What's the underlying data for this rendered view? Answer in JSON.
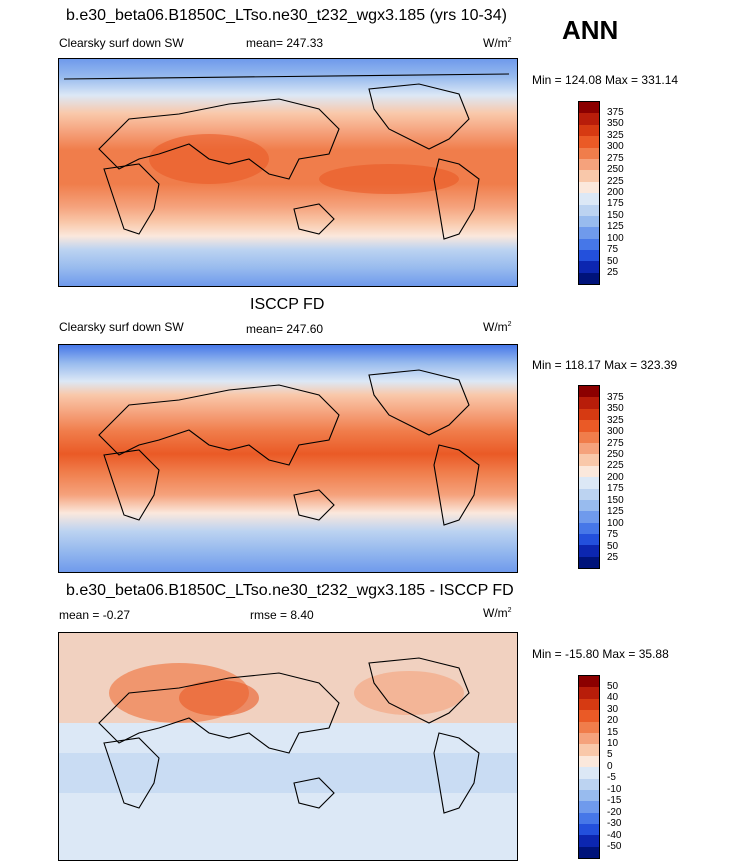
{
  "season": "ANN",
  "panels": [
    {
      "title": "b.e30_beta06.B1850C_LTso.ne30_t232_wgx3.185 (yrs 10-34)",
      "variable": "Clearsky surf down SW",
      "stat": "mean= 247.33",
      "units": "W/m",
      "units_sup": "2",
      "minmax": "Min = 124.08 Max = 331.14",
      "levels": [
        "375",
        "350",
        "325",
        "300",
        "275",
        "250",
        "225",
        "200",
        "175",
        "150",
        "125",
        "100",
        "75",
        "50",
        "25"
      ]
    },
    {
      "title": "ISCCP FD",
      "variable": "Clearsky surf down SW",
      "stat": "mean= 247.60",
      "units": "W/m",
      "units_sup": "2",
      "minmax": "Min = 118.17 Max = 323.39",
      "levels": [
        "375",
        "350",
        "325",
        "300",
        "275",
        "250",
        "225",
        "200",
        "175",
        "150",
        "125",
        "100",
        "75",
        "50",
        "25"
      ]
    },
    {
      "title": "b.e30_beta06.B1850C_LTso.ne30_t232_wgx3.185 - ISCCP FD",
      "variable": "mean =  -0.27",
      "stat": "rmse =   8.40",
      "units": "W/m",
      "units_sup": "2",
      "minmax": "Min = -15.80 Max =  35.88",
      "levels": [
        "50",
        "40",
        "30",
        "20",
        "15",
        "10",
        "5",
        "0",
        "-5",
        "-10",
        "-15",
        "-20",
        "-30",
        "-40",
        "-50"
      ]
    }
  ],
  "colorbar_colors": [
    "#8b0000",
    "#b81d0a",
    "#d63a12",
    "#ea5a26",
    "#f07d4b",
    "#f5a27c",
    "#f9c8aa",
    "#fbe8dc",
    "#dce8f6",
    "#bcd3f1",
    "#98bbee",
    "#6f9aec",
    "#4677e8",
    "#2350dc",
    "#0c26b0",
    "#00137a"
  ]
}
